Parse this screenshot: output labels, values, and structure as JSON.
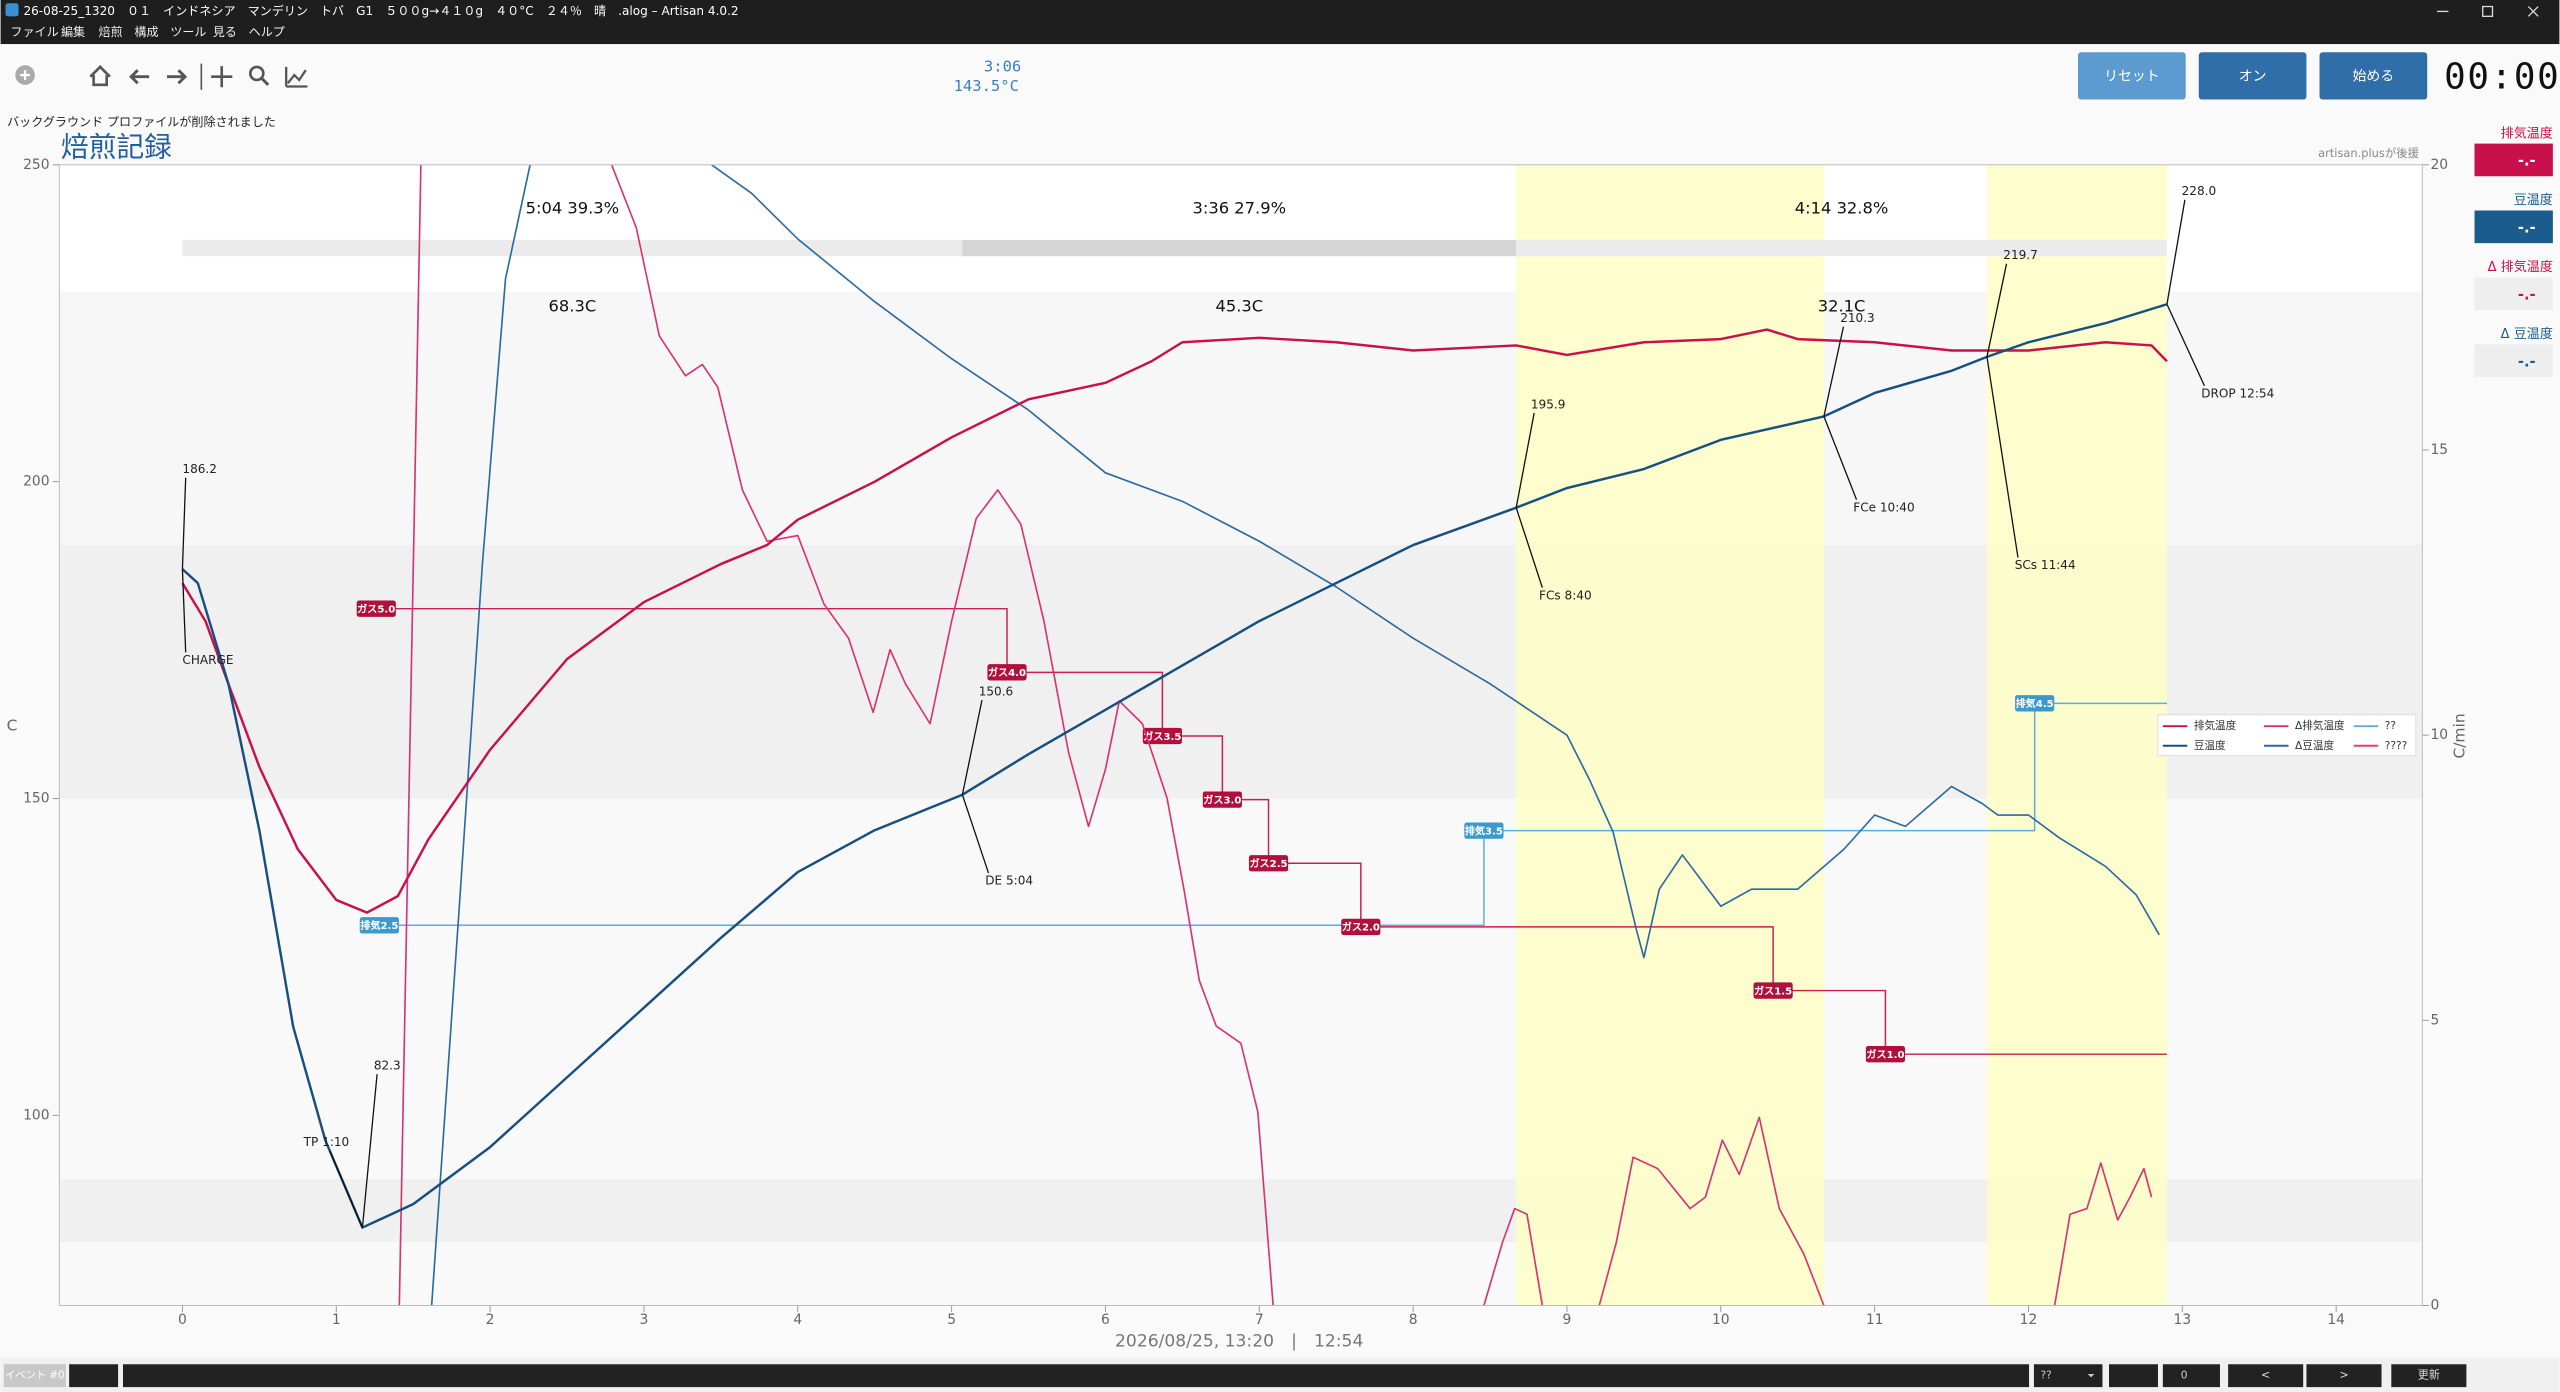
{
  "window": {
    "title": "26-08-25_1320　０１　インドネシア　マンデリン　トバ　G1　５００g→４１０g　４０°C　２４％　晴　.alog – Artisan 4.0.2"
  },
  "menu": [
    "ファイル",
    "編集",
    "焙煎",
    "構成",
    "ツール",
    "見る",
    "ヘルプ"
  ],
  "status": {
    "time": "3:06",
    "temp": "143.5°C"
  },
  "buttons": [
    "リセット",
    "オン",
    "始める"
  ],
  "timer": "00:00",
  "message": "バックグラウンド プロファイルが削除されました",
  "readouts": [
    {
      "label": "排気温度",
      "value": "-.-"
    },
    {
      "label": "豆温度",
      "value": "-.-"
    },
    {
      "label": "Δ 排気温度",
      "value": "-.-"
    },
    {
      "label": "Δ 豆温度",
      "value": "-.-"
    }
  ],
  "bottom_bar": {
    "event": "イベント #0",
    "combo": "??",
    "spin": "0",
    "buttons": [
      "<",
      ">",
      "更新"
    ]
  },
  "chart_data": {
    "type": "line",
    "title": "焙煎記録",
    "sponsor": "artisan.plusが後援",
    "xlabel": "2026/08/25, 13:20　|　12:54",
    "ylabel": "C",
    "y2label": "C/min",
    "xlim": [
      -0.8,
      14.56
    ],
    "ylim": [
      70,
      250
    ],
    "y2lim": [
      0,
      20
    ],
    "xticks": [
      0,
      1,
      2,
      3,
      4,
      5,
      6,
      7,
      8,
      9,
      10,
      11,
      12,
      13,
      14
    ],
    "yticks": [
      100,
      150,
      200,
      250
    ],
    "y2ticks": [
      0,
      5,
      10,
      15,
      20
    ],
    "bands": [
      {
        "from": 190,
        "to": 230,
        "color": "#f7f7f7"
      },
      {
        "from": 150,
        "to": 190,
        "color": "#f0f0f0"
      },
      {
        "from": 90,
        "to": 150,
        "color": "#f9f9f9"
      },
      {
        "from": 80,
        "to": 90,
        "color": "#f0f0f0"
      },
      {
        "from": 70,
        "to": 80,
        "color": "#f9f9f9"
      }
    ],
    "highlights": [
      {
        "from": 8.67,
        "to": 10.67,
        "color": "#fdfdc8"
      },
      {
        "from": 11.73,
        "to": 12.9,
        "color": "#fdfdc8"
      }
    ],
    "phases": [
      {
        "start": 0,
        "end": 5.07,
        "label": "5:04  39.3%",
        "delta": "68.3C",
        "color": "#ebebeb"
      },
      {
        "start": 5.07,
        "end": 8.67,
        "label": "3:36  27.9%",
        "delta": "45.3C",
        "color": "#d5d5d5"
      },
      {
        "start": 8.67,
        "end": 12.9,
        "label": "4:14  32.8%",
        "delta": "32.1C",
        "color": "#ebebeb"
      }
    ],
    "series": [
      {
        "name": "排気温度",
        "color": "#c8104a",
        "axis": "y",
        "x": [
          0,
          0.15,
          0.3,
          0.5,
          0.75,
          1,
          1.2,
          1.4,
          1.6,
          2,
          2.5,
          3,
          3.5,
          3.8,
          4,
          4.5,
          5,
          5.5,
          6,
          6.3,
          6.5,
          7,
          7.5,
          8,
          8.67,
          9,
          9.5,
          10,
          10.3,
          10.5,
          11,
          11.5,
          12,
          12.5,
          12.8,
          12.9
        ],
        "values": [
          184,
          178,
          168,
          155,
          142,
          134,
          132,
          134.6,
          143.6,
          157.7,
          172,
          181,
          187,
          190,
          194,
          200,
          207,
          213,
          215.6,
          219,
          222,
          222.7,
          222,
          220.7,
          221.5,
          220,
          222,
          222.5,
          224,
          222.5,
          222,
          220.7,
          220.7,
          222,
          221.5,
          219
        ]
      },
      {
        "name": "豆温度",
        "color": "#174f80",
        "axis": "y",
        "x": [
          0,
          0.1,
          0.3,
          0.5,
          0.72,
          0.93,
          1.17,
          1.5,
          2,
          2.5,
          3,
          3.5,
          4,
          4.5,
          5.07,
          5.5,
          6,
          6.5,
          7,
          7.5,
          8,
          8.67,
          9,
          9.5,
          10,
          10.67,
          11,
          11.5,
          11.73,
          12,
          12.5,
          12.9
        ],
        "values": [
          186.2,
          184,
          168,
          145,
          114,
          96,
          82.3,
          86,
          95,
          106,
          117,
          128,
          138.4,
          145,
          150.6,
          157,
          164,
          171,
          178,
          184,
          190,
          195.9,
          199,
          202,
          206.6,
          210.3,
          214,
          217.5,
          219.7,
          222,
          225,
          228
        ]
      },
      {
        "name": "Δ排気温度",
        "color": "#d63372",
        "axis": "y2",
        "x": [
          1.41,
          1.55,
          2,
          2.79,
          2.95,
          3.1,
          3.27,
          3.38,
          3.48,
          3.64,
          3.8,
          4,
          4.17,
          4.33,
          4.49,
          4.6,
          4.7,
          4.86,
          5,
          5.16,
          5.3,
          5.45,
          5.6,
          5.76,
          5.89,
          6,
          6.09,
          6.24,
          6.4,
          6.51,
          6.61,
          6.72,
          6.88,
          6.99,
          7.09,
          8,
          8.46,
          8.58,
          8.66,
          8.74,
          8.84,
          9,
          9.21,
          9.32,
          9.43,
          9.59,
          9.8,
          9.9,
          10.01,
          10.12,
          10.25,
          10.38,
          10.54,
          10.67,
          11.5,
          12.17,
          12.27,
          12.38,
          12.47,
          12.58,
          12.66,
          12.75,
          12.8
        ],
        "values": [
          0,
          20,
          null,
          20,
          18.9,
          17,
          16.3,
          16.5,
          16.1,
          14.3,
          13.4,
          13.5,
          12.3,
          11.7,
          10.4,
          11.5,
          10.9,
          10.2,
          12,
          13.8,
          14.3,
          13.7,
          12,
          9.7,
          8.4,
          9.4,
          10.6,
          10.2,
          8.9,
          7.3,
          5.7,
          4.9,
          4.6,
          3.4,
          0,
          null,
          0,
          1.1,
          1.7,
          1.6,
          0,
          null,
          0,
          1.1,
          2.6,
          2.4,
          1.7,
          1.9,
          2.9,
          2.3,
          3.3,
          1.7,
          0.9,
          0,
          null,
          0,
          1.6,
          1.7,
          2.5,
          1.5,
          1.9,
          2.4,
          1.9
        ]
      },
      {
        "name": "Δ豆温度",
        "color": "#2a6aa0",
        "axis": "y2",
        "x": [
          1.62,
          1.8,
          1.95,
          2.1,
          2.26,
          3,
          3.44,
          3.7,
          4,
          4.5,
          5,
          5.5,
          6,
          6.5,
          7,
          7.5,
          8,
          8.5,
          9,
          9.15,
          9.3,
          9.45,
          9.5,
          9.6,
          9.75,
          10,
          10.2,
          10.5,
          10.8,
          11,
          11.2,
          11.5,
          11.7,
          11.8,
          12,
          12.2,
          12.5,
          12.7,
          12.85
        ],
        "values": [
          0,
          7,
          13,
          18,
          20,
          null,
          20,
          19.5,
          18.7,
          17.6,
          16.6,
          15.7,
          14.6,
          14.1,
          13.4,
          12.6,
          11.7,
          10.9,
          10,
          9.2,
          8.3,
          6.6,
          6.1,
          7.3,
          7.9,
          7,
          7.3,
          7.3,
          8,
          8.6,
          8.4,
          9.1,
          8.8,
          8.6,
          8.6,
          8.2,
          7.7,
          7.2,
          6.5
        ]
      }
    ],
    "legend_extra": [
      {
        "name": "??",
        "color": "#5ab0e0"
      },
      {
        "name": "????",
        "color": "#e04070"
      }
    ],
    "annotations": [
      {
        "time": 0,
        "temp": 186.2,
        "value_label": "186.2",
        "label": "CHARGE"
      },
      {
        "time": 1.17,
        "temp": 82.3,
        "value_label": "82.3",
        "label": "TP 1:10"
      },
      {
        "time": 5.07,
        "temp": 150.6,
        "value_label": "150.6",
        "label": "DE 5:04"
      },
      {
        "time": 8.67,
        "temp": 195.9,
        "value_label": "195.9",
        "label": "FCs 8:40"
      },
      {
        "time": 10.67,
        "temp": 210.3,
        "value_label": "210.3",
        "label": "FCe 10:40"
      },
      {
        "time": 11.73,
        "temp": 219.7,
        "value_label": "219.7",
        "label": "SCs 11:44"
      },
      {
        "time": 12.9,
        "temp": 228,
        "value_label": "228.0",
        "label": "DROP 12:54"
      }
    ],
    "events": {
      "gas": [
        {
          "time": 1.26,
          "label": "ガス5.0"
        },
        {
          "time": 5.36,
          "label": "ガス4.0"
        },
        {
          "time": 6.37,
          "label": "ガス3.5"
        },
        {
          "time": 6.76,
          "label": "ガス3.0"
        },
        {
          "time": 7.06,
          "label": "ガス2.5"
        },
        {
          "time": 7.66,
          "label": "ガス2.0"
        },
        {
          "time": 10.34,
          "label": "ガス1.5"
        },
        {
          "time": 11.07,
          "label": "ガス1.0"
        }
      ],
      "exhaust": [
        {
          "time": 1.28,
          "label": "排気2.5"
        },
        {
          "time": 8.46,
          "label": "排気3.5"
        },
        {
          "time": 12.04,
          "label": "排気4.5"
        }
      ]
    }
  }
}
